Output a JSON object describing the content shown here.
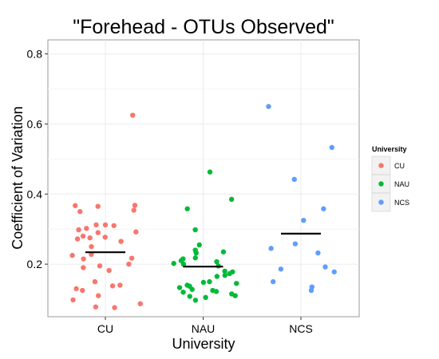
{
  "chart_data": {
    "type": "scatter",
    "title": "\"Forehead - OTUs Observed\"",
    "xlabel": "University",
    "ylabel": "Coefficient of Variation",
    "ylim": [
      0.05,
      0.84
    ],
    "yticks": [
      0.2,
      0.4,
      0.6,
      0.8
    ],
    "yticklabels": [
      "0.2",
      "0.4",
      "0.6",
      "0.8"
    ],
    "categories": [
      "CU",
      "NAU",
      "NCS"
    ],
    "grid": true,
    "legend": {
      "title": "University",
      "position": "right"
    },
    "series": [
      {
        "name": "CU",
        "color": "#F8766D",
        "mean": 0.234,
        "values": [
          0.625,
          0.368,
          0.367,
          0.365,
          0.354,
          0.35,
          0.312,
          0.312,
          0.31,
          0.302,
          0.298,
          0.292,
          0.29,
          0.28,
          0.277,
          0.275,
          0.272,
          0.265,
          0.25,
          0.228,
          0.225,
          0.217,
          0.215,
          0.2,
          0.195,
          0.19,
          0.182,
          0.15,
          0.14,
          0.138,
          0.13,
          0.125,
          0.11,
          0.098,
          0.087,
          0.078,
          0.076
        ]
      },
      {
        "name": "NAU",
        "color": "#00BA38",
        "mean": 0.193,
        "values": [
          0.463,
          0.385,
          0.358,
          0.298,
          0.255,
          0.24,
          0.235,
          0.232,
          0.218,
          0.215,
          0.21,
          0.207,
          0.202,
          0.2,
          0.195,
          0.18,
          0.178,
          0.173,
          0.168,
          0.165,
          0.15,
          0.148,
          0.145,
          0.14,
          0.137,
          0.133,
          0.128,
          0.125,
          0.122,
          0.12,
          0.115,
          0.11,
          0.108,
          0.105,
          0.097
        ]
      },
      {
        "name": "NCS",
        "color": "#619CFF",
        "mean": 0.287,
        "values": [
          0.65,
          0.533,
          0.442,
          0.358,
          0.325,
          0.258,
          0.245,
          0.232,
          0.192,
          0.186,
          0.178,
          0.15,
          0.135,
          0.125
        ]
      }
    ]
  }
}
